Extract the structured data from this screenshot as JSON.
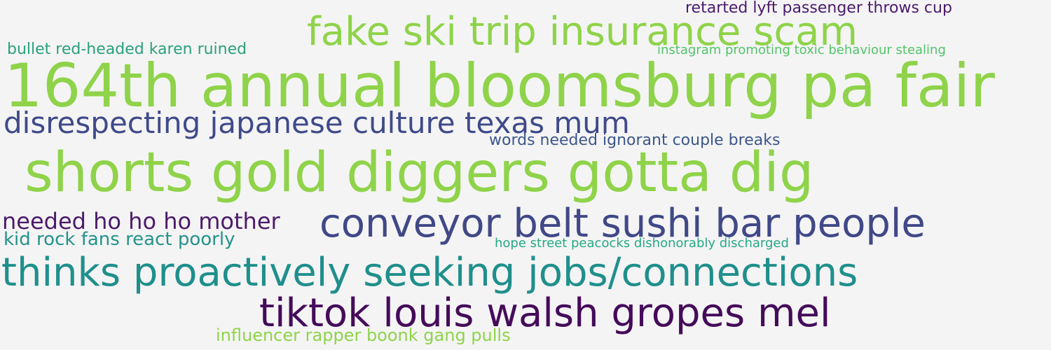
{
  "word_cloud": {
    "phrases": [
      {
        "text": "retarted lyft passenger throws cup",
        "color": "#4b1a6c"
      },
      {
        "text": "fake ski trip insurance scam",
        "color": "#8fd34a"
      },
      {
        "text": "bullet red-headed karen ruined",
        "color": "#2aa07e"
      },
      {
        "text": "instagram promoting toxic behaviour stealing",
        "color": "#52c36b"
      },
      {
        "text": "164th annual bloomsburg pa fair",
        "color": "#8fd34a"
      },
      {
        "text": "disrespecting japanese culture texas mum",
        "color": "#3f4a8a"
      },
      {
        "text": "words needed ignorant couple breaks",
        "color": "#3c568a"
      },
      {
        "text": "shorts gold diggers gotta dig",
        "color": "#8fd34a"
      },
      {
        "text": "needed ho ho ho mother",
        "color": "#4d1a6a"
      },
      {
        "text": "conveyor belt sushi bar people",
        "color": "#404887"
      },
      {
        "text": "kid rock fans react poorly",
        "color": "#23938b"
      },
      {
        "text": "hope street peacocks dishonorably discharged",
        "color": "#25a884"
      },
      {
        "text": "thinks proactively seeking jobs/connections",
        "color": "#1f8f8c"
      },
      {
        "text": "tiktok louis walsh gropes mel",
        "color": "#450b5a"
      },
      {
        "text": "influencer rapper boonk gang pulls",
        "color": "#8fd34a"
      }
    ]
  }
}
